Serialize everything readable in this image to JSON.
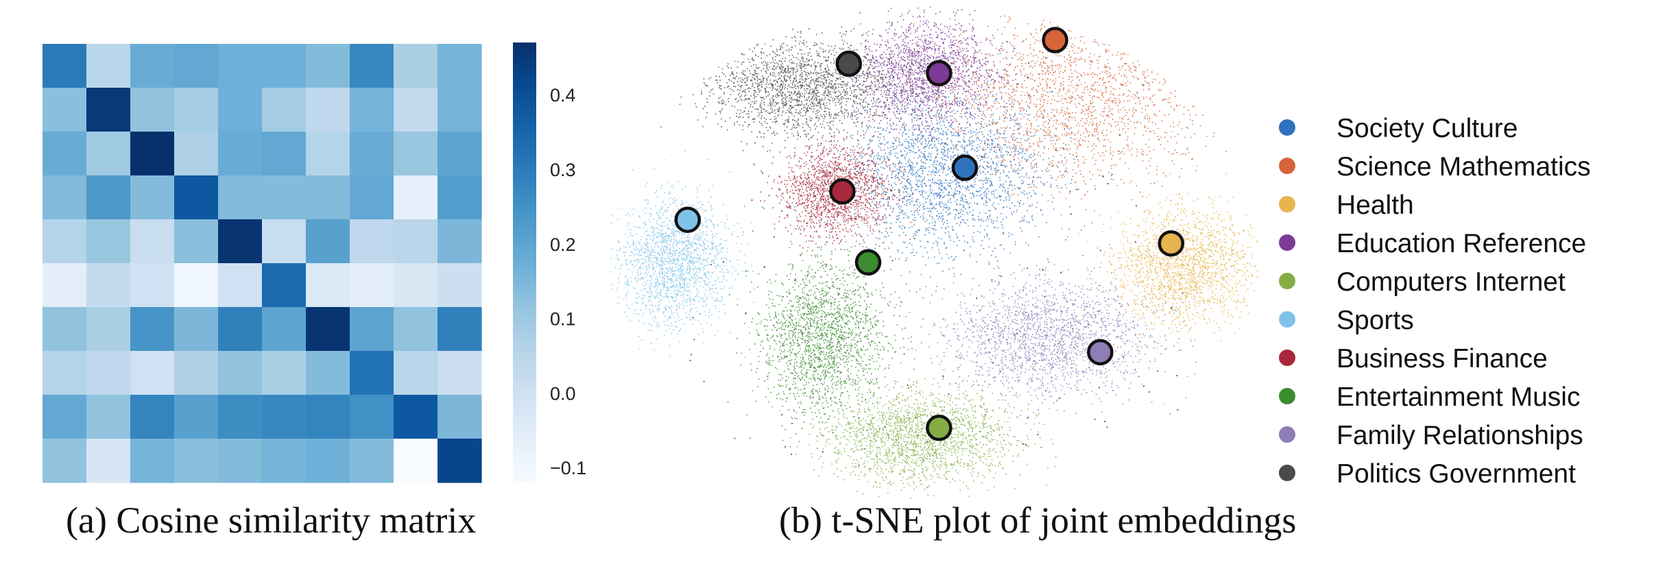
{
  "captions": {
    "a": "(a) Cosine similarity matrix",
    "b": "(b) t-SNE plot of joint embeddings"
  },
  "chart_data": [
    {
      "type": "heatmap",
      "title": "",
      "xlabel": "",
      "ylabel": "",
      "rows": 10,
      "cols": 10,
      "colormap": "Blues",
      "vmin": -0.12,
      "vmax": 0.47,
      "colorbar": {
        "ticks": [
          0.4,
          0.3,
          0.2,
          0.1,
          0.0,
          -0.1
        ],
        "tick_labels": [
          "0.4",
          "0.3",
          "0.2",
          "0.1",
          "0.0",
          "−0.1"
        ]
      },
      "values": [
        [
          0.3,
          0.05,
          0.18,
          0.19,
          0.17,
          0.17,
          0.14,
          0.27,
          0.08,
          0.16
        ],
        [
          0.13,
          0.45,
          0.12,
          0.09,
          0.17,
          0.09,
          0.04,
          0.16,
          0.03,
          0.16
        ],
        [
          0.18,
          0.1,
          0.47,
          0.07,
          0.18,
          0.19,
          0.06,
          0.18,
          0.11,
          0.2
        ],
        [
          0.14,
          0.23,
          0.14,
          0.38,
          0.14,
          0.14,
          0.14,
          0.19,
          -0.07,
          0.22
        ],
        [
          0.06,
          0.11,
          0.02,
          0.13,
          0.46,
          0.02,
          0.21,
          0.04,
          0.05,
          0.15
        ],
        [
          -0.06,
          0.03,
          0.0,
          -0.1,
          0.0,
          0.34,
          -0.04,
          -0.06,
          -0.03,
          0.01
        ],
        [
          0.12,
          0.08,
          0.24,
          0.15,
          0.29,
          0.2,
          0.46,
          0.2,
          0.12,
          0.29
        ],
        [
          0.06,
          0.04,
          0.0,
          0.07,
          0.12,
          0.08,
          0.14,
          0.32,
          0.05,
          0.01
        ],
        [
          0.19,
          0.12,
          0.28,
          0.21,
          0.26,
          0.27,
          0.28,
          0.25,
          0.38,
          0.15
        ],
        [
          0.12,
          -0.02,
          0.16,
          0.13,
          0.14,
          0.16,
          0.17,
          0.14,
          -0.12,
          0.42
        ]
      ]
    },
    {
      "type": "scatter",
      "title": "",
      "xlabel": "",
      "ylabel": "",
      "legend_position": "right",
      "series": [
        {
          "name": "Society Culture",
          "color": "#2f73c0",
          "centroid": [
            0.52,
            0.67
          ],
          "spread": [
            0.13,
            0.14
          ],
          "points": 2400
        },
        {
          "name": "Science Mathematics",
          "color": "#d7643a",
          "centroid": [
            0.72,
            0.82
          ],
          "spread": [
            0.17,
            0.15
          ],
          "points": 2900
        },
        {
          "name": "Health",
          "color": "#e6b54d",
          "centroid": [
            0.89,
            0.47
          ],
          "spread": [
            0.09,
            0.1
          ],
          "points": 2000
        },
        {
          "name": "Education Reference",
          "color": "#7e3a96",
          "centroid": [
            0.49,
            0.88
          ],
          "spread": [
            0.09,
            0.09
          ],
          "points": 1900
        },
        {
          "name": "Computers Internet",
          "color": "#84ad46",
          "centroid": [
            0.48,
            0.11
          ],
          "spread": [
            0.12,
            0.08
          ],
          "points": 2400
        },
        {
          "name": "Sports",
          "color": "#7fc3ea",
          "centroid": [
            0.1,
            0.48
          ],
          "spread": [
            0.07,
            0.11
          ],
          "points": 1900
        },
        {
          "name": "Business Finance",
          "color": "#a8293b",
          "centroid": [
            0.35,
            0.63
          ],
          "spread": [
            0.07,
            0.08
          ],
          "points": 1700
        },
        {
          "name": "Entertainment Music",
          "color": "#3a8c2e",
          "centroid": [
            0.33,
            0.32
          ],
          "spread": [
            0.08,
            0.13
          ],
          "points": 2200
        },
        {
          "name": "Family Relationships",
          "color": "#8f7db8",
          "centroid": [
            0.68,
            0.32
          ],
          "spread": [
            0.13,
            0.1
          ],
          "points": 2600
        },
        {
          "name": "Politics Government",
          "color": "#4a4a4a",
          "centroid": [
            0.3,
            0.85
          ],
          "spread": [
            0.12,
            0.08
          ],
          "points": 2200
        }
      ],
      "markers": [
        {
          "series": "Society Culture",
          "x": 0.55,
          "y": 0.68
        },
        {
          "series": "Science Mathematics",
          "x": 0.69,
          "y": 0.95
        },
        {
          "series": "Health",
          "x": 0.87,
          "y": 0.52
        },
        {
          "series": "Education Reference",
          "x": 0.51,
          "y": 0.88
        },
        {
          "series": "Computers Internet",
          "x": 0.51,
          "y": 0.13
        },
        {
          "series": "Sports",
          "x": 0.12,
          "y": 0.57
        },
        {
          "series": "Business Finance",
          "x": 0.36,
          "y": 0.63
        },
        {
          "series": "Entertainment Music",
          "x": 0.4,
          "y": 0.48
        },
        {
          "series": "Family Relationships",
          "x": 0.76,
          "y": 0.29
        },
        {
          "series": "Politics Government",
          "x": 0.37,
          "y": 0.9
        }
      ]
    }
  ]
}
